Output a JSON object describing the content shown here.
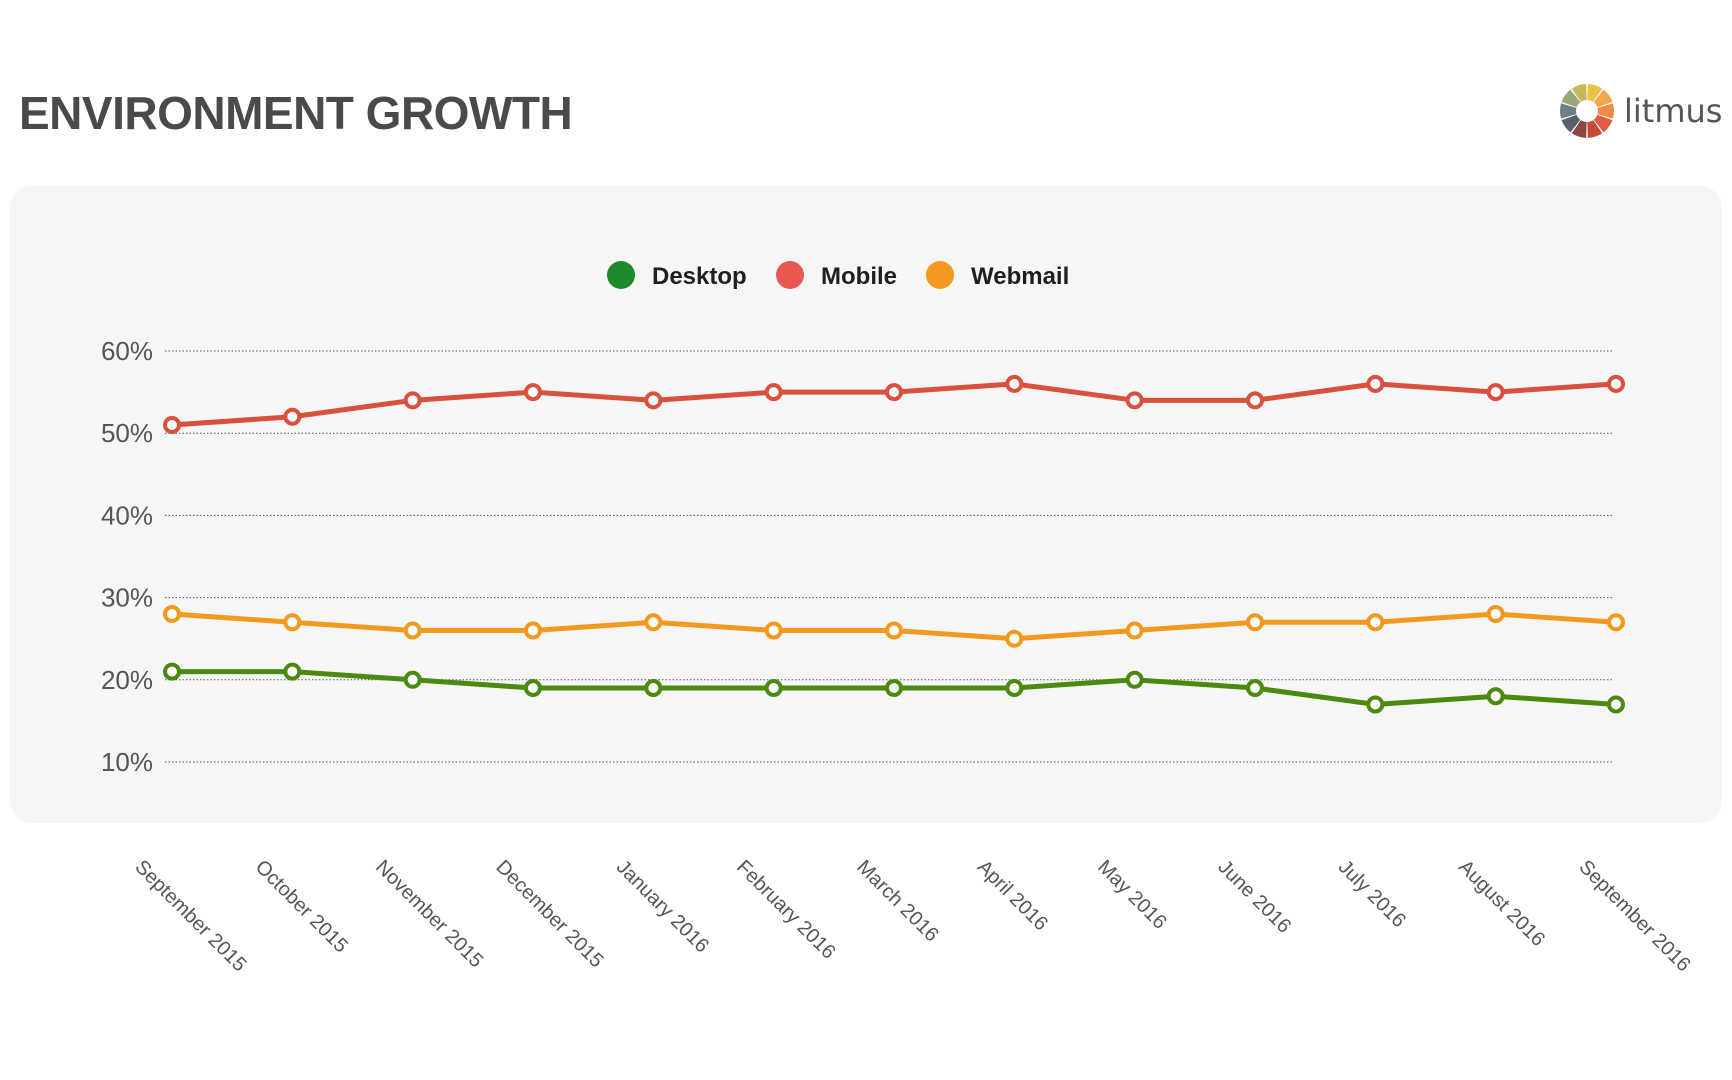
{
  "header": {
    "title": "ENVIRONMENT GROWTH",
    "brand": "litmus"
  },
  "colors": {
    "background": "#ffffff",
    "panel": "#f6f6f6",
    "title": "#4a4a4a",
    "logo_segments": [
      "#e9c24a",
      "#f0a848",
      "#ef8a4a",
      "#e25c43",
      "#c64a3a",
      "#8a4840",
      "#5a6070",
      "#6e7e86",
      "#9aa878",
      "#c8b85a"
    ]
  },
  "chart_data": {
    "type": "line",
    "categories": [
      "September 2015",
      "October 2015",
      "November 2015",
      "December 2015",
      "January 2016",
      "February 2016",
      "March 2016",
      "April 2016",
      "May 2016",
      "June 2016",
      "July 2016",
      "August 2016",
      "September 2016"
    ],
    "series": [
      {
        "name": "Desktop",
        "legend_color": "#1e8a2e",
        "line_color": "#4a8a10",
        "values": [
          21,
          21,
          20,
          19,
          19,
          19,
          19,
          19,
          20,
          19,
          17,
          18,
          17
        ]
      },
      {
        "name": "Mobile",
        "legend_color": "#e8584f",
        "line_color": "#d9503c",
        "values": [
          51,
          52,
          54,
          55,
          54,
          55,
          55,
          56,
          54,
          54,
          56,
          55,
          56
        ]
      },
      {
        "name": "Webmail",
        "legend_color": "#f39a1e",
        "line_color": "#f39a1e",
        "values": [
          28,
          27,
          26,
          26,
          27,
          26,
          26,
          25,
          26,
          27,
          27,
          28,
          27
        ]
      }
    ],
    "yticks": [
      "60%",
      "50%",
      "40%",
      "30%",
      "20%",
      "10%"
    ],
    "ytick_values": [
      60,
      50,
      40,
      30,
      20,
      10
    ],
    "ylim": [
      10,
      60
    ],
    "grid": true,
    "legend_position": "top-center"
  }
}
